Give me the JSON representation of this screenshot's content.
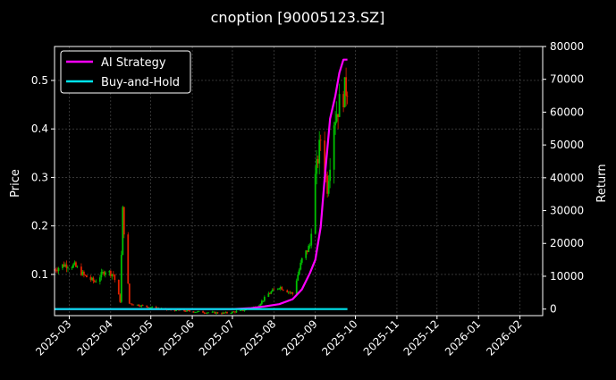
{
  "chart_data": {
    "type": "line",
    "title": "cnoption [90005123.SZ]",
    "ylabel_left": "Price",
    "ylabel_right": "Return",
    "xlabel": "",
    "grid": true,
    "legend_position": "top-left",
    "background": "#000000",
    "colors": {
      "up": "#00c000",
      "down": "#e02000",
      "ai_strategy": "#ff00ff",
      "buy_and_hold": "#00e5ee",
      "grid": "#555555"
    },
    "x_range": [
      "2025-02-18",
      "2026-02-18"
    ],
    "y_left_range": [
      0.015,
      0.57
    ],
    "y_right_range": [
      -2000,
      80000
    ],
    "x_ticks": [
      "2025-03",
      "2025-04",
      "2025-05",
      "2025-06",
      "2025-07",
      "2025-08",
      "2025-09",
      "2025-10",
      "2025-11",
      "2025-12",
      "2026-01",
      "2026-02"
    ],
    "y_left_ticks": [
      "0.1",
      "0.2",
      "0.3",
      "0.4",
      "0.5"
    ],
    "y_right_ticks": [
      "0",
      "10000",
      "20000",
      "30000",
      "40000",
      "50000",
      "60000",
      "70000",
      "80000"
    ],
    "price_points": [
      {
        "date": "2025-02-18",
        "price": 0.11
      },
      {
        "date": "2025-02-25",
        "price": 0.12
      },
      {
        "date": "2025-03-05",
        "price": 0.118
      },
      {
        "date": "2025-03-12",
        "price": 0.098
      },
      {
        "date": "2025-03-20",
        "price": 0.085
      },
      {
        "date": "2025-03-28",
        "price": 0.108
      },
      {
        "date": "2025-04-03",
        "price": 0.1
      },
      {
        "date": "2025-04-08",
        "price": 0.045
      },
      {
        "date": "2025-04-10",
        "price": 0.23
      },
      {
        "date": "2025-04-15",
        "price": 0.04
      },
      {
        "date": "2025-04-25",
        "price": 0.035
      },
      {
        "date": "2025-05-10",
        "price": 0.028
      },
      {
        "date": "2025-05-25",
        "price": 0.025
      },
      {
        "date": "2025-06-10",
        "price": 0.022
      },
      {
        "date": "2025-06-25",
        "price": 0.02
      },
      {
        "date": "2025-07-08",
        "price": 0.025
      },
      {
        "date": "2025-07-20",
        "price": 0.035
      },
      {
        "date": "2025-07-28",
        "price": 0.06
      },
      {
        "date": "2025-08-05",
        "price": 0.075
      },
      {
        "date": "2025-08-15",
        "price": 0.06
      },
      {
        "date": "2025-08-22",
        "price": 0.13
      },
      {
        "date": "2025-08-28",
        "price": 0.16
      },
      {
        "date": "2025-09-01",
        "price": 0.3
      },
      {
        "date": "2025-09-05",
        "price": 0.38
      },
      {
        "date": "2025-09-10",
        "price": 0.28
      },
      {
        "date": "2025-09-15",
        "price": 0.42
      },
      {
        "date": "2025-09-20",
        "price": 0.46
      },
      {
        "date": "2025-09-25",
        "price": 0.49
      }
    ],
    "series": [
      {
        "name": "AI Strategy",
        "points": [
          {
            "date": "2025-02-18",
            "value": 0
          },
          {
            "date": "2025-07-01",
            "value": 0
          },
          {
            "date": "2025-07-15",
            "value": 300
          },
          {
            "date": "2025-07-25",
            "value": 800
          },
          {
            "date": "2025-08-05",
            "value": 1500
          },
          {
            "date": "2025-08-15",
            "value": 3000
          },
          {
            "date": "2025-08-22",
            "value": 6000
          },
          {
            "date": "2025-08-28",
            "value": 11000
          },
          {
            "date": "2025-09-01",
            "value": 15000
          },
          {
            "date": "2025-09-05",
            "value": 25000
          },
          {
            "date": "2025-09-08",
            "value": 40000
          },
          {
            "date": "2025-09-12",
            "value": 58000
          },
          {
            "date": "2025-09-16",
            "value": 65000
          },
          {
            "date": "2025-09-19",
            "value": 72000
          },
          {
            "date": "2025-09-22",
            "value": 76000
          },
          {
            "date": "2025-09-25",
            "value": 76000
          }
        ]
      },
      {
        "name": "Buy-and-Hold",
        "points": [
          {
            "date": "2025-02-18",
            "value": 0
          },
          {
            "date": "2025-09-25",
            "value": 0
          }
        ]
      }
    ]
  }
}
